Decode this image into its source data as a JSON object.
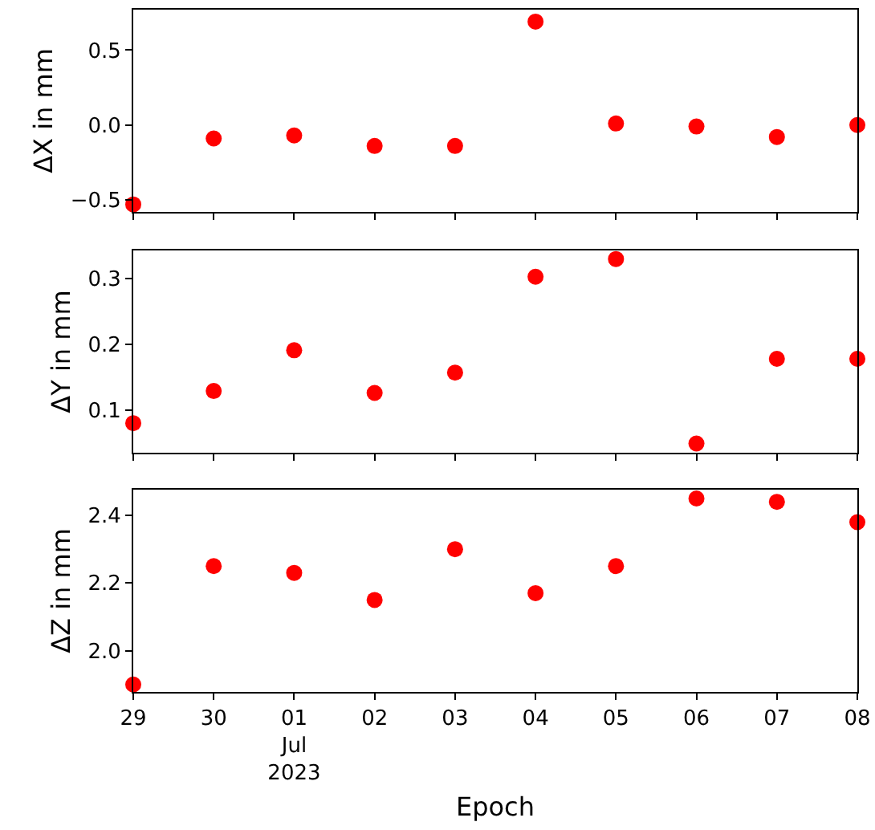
{
  "chart_data": [
    {
      "type": "scatter",
      "ylabel": "ΔX in mm",
      "x": [
        "2023-06-29",
        "2023-06-30",
        "2023-07-01",
        "2023-07-02",
        "2023-07-03",
        "2023-07-04",
        "2023-07-05",
        "2023-07-06",
        "2023-07-07",
        "2023-07-08"
      ],
      "series": [
        {
          "color": "#ff0000",
          "values": [
            -0.53,
            -0.09,
            -0.07,
            -0.14,
            -0.14,
            0.69,
            0.01,
            -0.01,
            -0.08,
            0.0
          ]
        }
      ],
      "xlim": [
        "2023-06-29",
        "2023-07-08"
      ],
      "xticks": [
        {
          "value": "2023-06-29",
          "label": null
        },
        {
          "value": "2023-06-30",
          "label": null
        },
        {
          "value": "2023-07-01",
          "label": null
        },
        {
          "value": "2023-07-02",
          "label": null
        },
        {
          "value": "2023-07-03",
          "label": null
        },
        {
          "value": "2023-07-04",
          "label": null
        },
        {
          "value": "2023-07-05",
          "label": null
        },
        {
          "value": "2023-07-06",
          "label": null
        },
        {
          "value": "2023-07-07",
          "label": null
        },
        {
          "value": "2023-07-08",
          "label": null
        }
      ],
      "ylim": [
        -0.58,
        0.77
      ],
      "yticks": [
        {
          "value": -0.5,
          "label": "−0.5"
        },
        {
          "value": 0,
          "label": "0.0"
        },
        0.5
      ],
      "tick_labels": "y",
      "grid": false,
      "marker": "circle"
    },
    {
      "type": "scatter",
      "ylabel": "ΔY in mm",
      "x": [
        "2023-06-29",
        "2023-06-30",
        "2023-07-01",
        "2023-07-02",
        "2023-07-03",
        "2023-07-04",
        "2023-07-05",
        "2023-07-06",
        "2023-07-07",
        "2023-07-08"
      ],
      "series": [
        {
          "color": "#ff0000",
          "values": [
            0.08,
            0.129,
            0.191,
            0.126,
            0.157,
            0.303,
            0.33,
            0.049,
            0.178,
            0.178
          ]
        }
      ],
      "xlim": [
        "2023-06-29",
        "2023-07-08"
      ],
      "xticks": [
        {
          "value": "2023-06-29",
          "label": null
        },
        {
          "value": "2023-06-30",
          "label": null
        },
        {
          "value": "2023-07-01",
          "label": null
        },
        {
          "value": "2023-07-02",
          "label": null
        },
        {
          "value": "2023-07-03",
          "label": null
        },
        {
          "value": "2023-07-04",
          "label": null
        },
        {
          "value": "2023-07-05",
          "label": null
        },
        {
          "value": "2023-07-06",
          "label": null
        },
        {
          "value": "2023-07-07",
          "label": null
        },
        {
          "value": "2023-07-08",
          "label": null
        }
      ],
      "ylim": [
        0.035,
        0.343
      ],
      "yticks": [
        0.1,
        0.2,
        0.3
      ],
      "tick_labels": "y",
      "grid": false,
      "marker": "circle"
    },
    {
      "type": "scatter",
      "ylabel": "ΔZ in mm",
      "xlabel": "Epoch",
      "x": [
        "2023-06-29",
        "2023-06-30",
        "2023-07-01",
        "2023-07-02",
        "2023-07-03",
        "2023-07-04",
        "2023-07-05",
        "2023-07-06",
        "2023-07-07",
        "2023-07-08"
      ],
      "series": [
        {
          "color": "#ff0000",
          "values": [
            1.9,
            2.25,
            2.23,
            2.15,
            2.3,
            2.17,
            2.25,
            2.45,
            2.44,
            2.38
          ]
        }
      ],
      "xlim": [
        "2023-06-29",
        "2023-07-08"
      ],
      "xticks": [
        {
          "value": "2023-06-29",
          "label": "29"
        },
        {
          "value": "2023-06-30",
          "label": "30"
        },
        {
          "value": "2023-07-01",
          "label": "01\nJul\n2023"
        },
        {
          "value": "2023-07-02",
          "label": "02"
        },
        {
          "value": "2023-07-03",
          "label": "03"
        },
        {
          "value": "2023-07-04",
          "label": "04"
        },
        {
          "value": "2023-07-05",
          "label": "05"
        },
        {
          "value": "2023-07-06",
          "label": "06"
        },
        {
          "value": "2023-07-07",
          "label": "07"
        },
        {
          "value": "2023-07-08",
          "label": "08"
        }
      ],
      "ylim": [
        1.878,
        2.476
      ],
      "yticks": [
        {
          "value": 2.0,
          "label": "2.0"
        },
        {
          "value": 2.2,
          "label": "2.2"
        },
        {
          "value": 2.4,
          "label": "2.4"
        }
      ],
      "grid": false,
      "marker": "circle"
    }
  ]
}
